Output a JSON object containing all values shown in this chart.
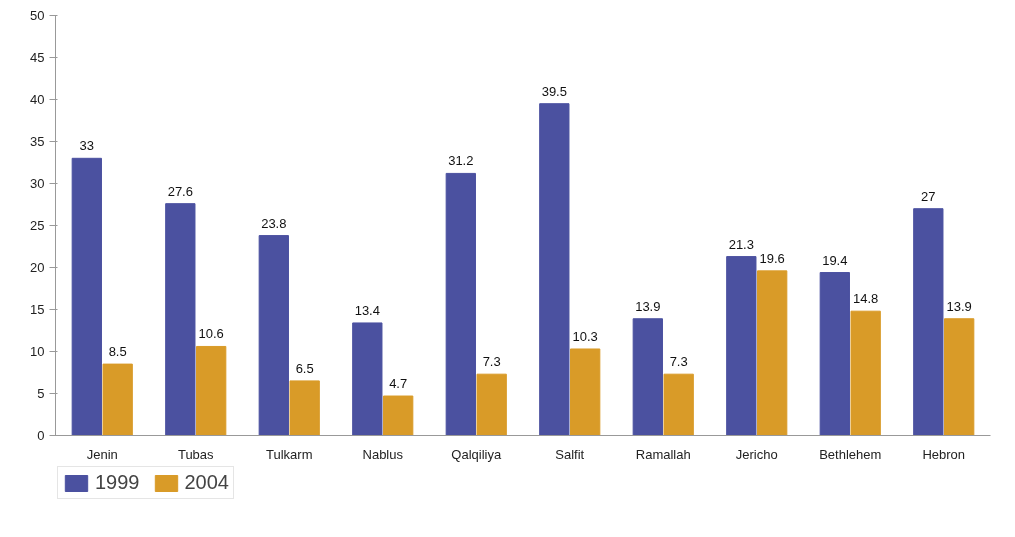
{
  "chart_data": {
    "type": "bar",
    "categories": [
      "Jenin",
      "Tubas",
      "Tulkarm",
      "Nablus",
      "Qalqiliya",
      "Salfit",
      "Ramallah",
      "Jericho",
      "Bethlehem",
      "Hebron"
    ],
    "series": [
      {
        "name": "1999",
        "color": "#4b51a0",
        "values": [
          33,
          27.6,
          23.8,
          13.4,
          31.2,
          39.5,
          13.9,
          21.3,
          19.4,
          27
        ]
      },
      {
        "name": "2004",
        "color": "#d99b28",
        "values": [
          8.5,
          10.6,
          6.5,
          4.7,
          7.3,
          10.3,
          7.3,
          19.6,
          14.8,
          13.9
        ]
      }
    ],
    "ylim": [
      0,
      50
    ],
    "yticks": [
      0,
      5,
      10,
      15,
      20,
      25,
      30,
      35,
      40,
      45,
      50
    ],
    "grid": false,
    "legend": "bottom left",
    "data_labels": true
  }
}
